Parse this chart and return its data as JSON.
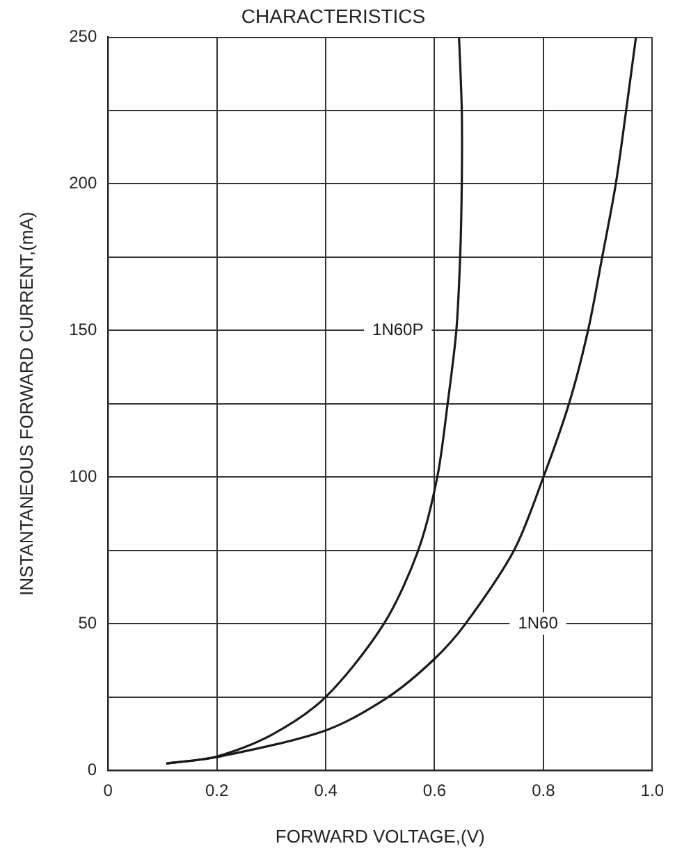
{
  "chart_data": {
    "type": "line",
    "title": "CHARACTERISTICS",
    "xlabel": "FORWARD VOLTAGE,(V)",
    "ylabel": "INSTANTANEOUS FORWARD CURRENT,(mA)",
    "series": [
      {
        "name": "1N60P",
        "color": "#1a1a1a",
        "x": [
          0.107,
          0.2,
          0.3,
          0.4,
          0.507,
          0.57,
          0.605,
          0.624,
          0.64,
          0.647,
          0.65,
          0.65,
          0.645
        ],
        "values": [
          2.3,
          4.7,
          12,
          25,
          50,
          75,
          100,
          125,
          150,
          175,
          200,
          225,
          250
        ]
      },
      {
        "name": "1N60",
        "color": "#1a1a1a",
        "x": [
          0.107,
          0.2,
          0.4,
          0.515,
          0.6,
          0.657,
          0.746,
          0.8,
          0.847,
          0.882,
          0.908,
          0.933,
          0.952,
          0.97
        ],
        "values": [
          2.3,
          4.5,
          13.6,
          25,
          38,
          50,
          75,
          100,
          125,
          150,
          175,
          200,
          225,
          250
        ]
      }
    ],
    "xlim": [
      0,
      1.0
    ],
    "xticks": [
      0,
      0.2,
      0.4,
      0.6,
      0.8,
      {
        "value": 1.0,
        "label": "1.0"
      }
    ],
    "ylim": [
      0,
      250
    ],
    "yticks": [
      0,
      {
        "value": 25,
        "label": null
      },
      50,
      {
        "value": 75,
        "label": null
      },
      100,
      {
        "value": 125,
        "label": null
      },
      150,
      {
        "value": 175,
        "label": null
      },
      200,
      {
        "value": 225,
        "label": null
      },
      250
    ],
    "grid": true,
    "legend": false,
    "marker": "none",
    "line_style": "solid"
  }
}
